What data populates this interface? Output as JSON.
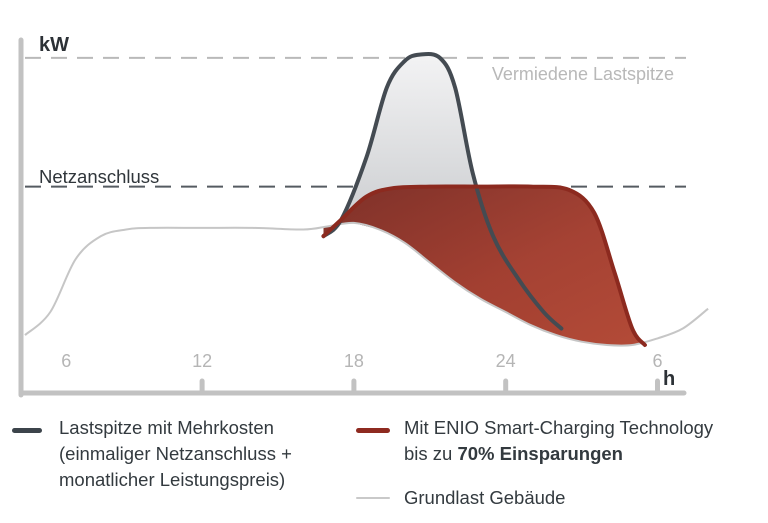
{
  "chart_data": {
    "type": "area",
    "ylabel": "kW",
    "xlabel": "h",
    "x_ticks": [
      "6",
      "12",
      "18",
      "24",
      "6"
    ],
    "x_range_hours": [
      5,
      32
    ],
    "y_range": [
      0,
      100
    ],
    "reference_lines": [
      {
        "label": "Vermiedene Lastspitze",
        "value": 87
      },
      {
        "label": "Netzanschluss",
        "value": 48
      }
    ],
    "series": [
      {
        "name": "Grundlast Gebäude",
        "color": "#c6c6c6",
        "x": [
          5,
          6,
          7,
          8,
          9,
          10,
          12,
          14,
          16,
          17,
          18,
          19,
          20,
          21,
          22,
          23,
          24,
          25,
          26,
          27,
          28,
          29,
          30,
          31,
          32
        ],
        "y": [
          3,
          10,
          26,
          33,
          35,
          35.5,
          35.5,
          35.5,
          35,
          36,
          37,
          35,
          31,
          25,
          19,
          14,
          10,
          6,
          3,
          1,
          0,
          0,
          2,
          5,
          11
        ]
      },
      {
        "name": "Lastspitze mit Mehrkosten",
        "color": "#444b52",
        "x": [
          16.8,
          17.5,
          18.5,
          19.3,
          20.0,
          20.6,
          21.4,
          22.0,
          22.7,
          23.5,
          24.5,
          25.5,
          26.2
        ],
        "y": [
          33,
          38,
          57,
          78,
          86,
          88,
          87,
          78,
          52,
          33,
          20,
          10,
          5
        ]
      },
      {
        "name": "Mit ENIO Smart-Charging Technology",
        "color": "#8c2a1f",
        "x": [
          16.8,
          17.5,
          18.5,
          19.5,
          21,
          23,
          25,
          26.5,
          27.5,
          28.3,
          29,
          29.5
        ],
        "y": [
          33,
          38,
          45,
          47.5,
          48,
          48,
          48,
          47,
          40,
          22,
          5,
          0
        ]
      }
    ]
  },
  "legend": {
    "peak_line1": "Lastspitze mit Mehrkosten",
    "peak_line2": "(einmaliger Netzanschluss +",
    "peak_line3": "monatlicher Leistungspreis)",
    "enio_line1": "Mit ENIO Smart-Charging Technology",
    "enio_line2_prefix": "bis zu ",
    "enio_line2_bold": "70% Einsparungen",
    "base_label": "Grundlast Gebäude"
  }
}
